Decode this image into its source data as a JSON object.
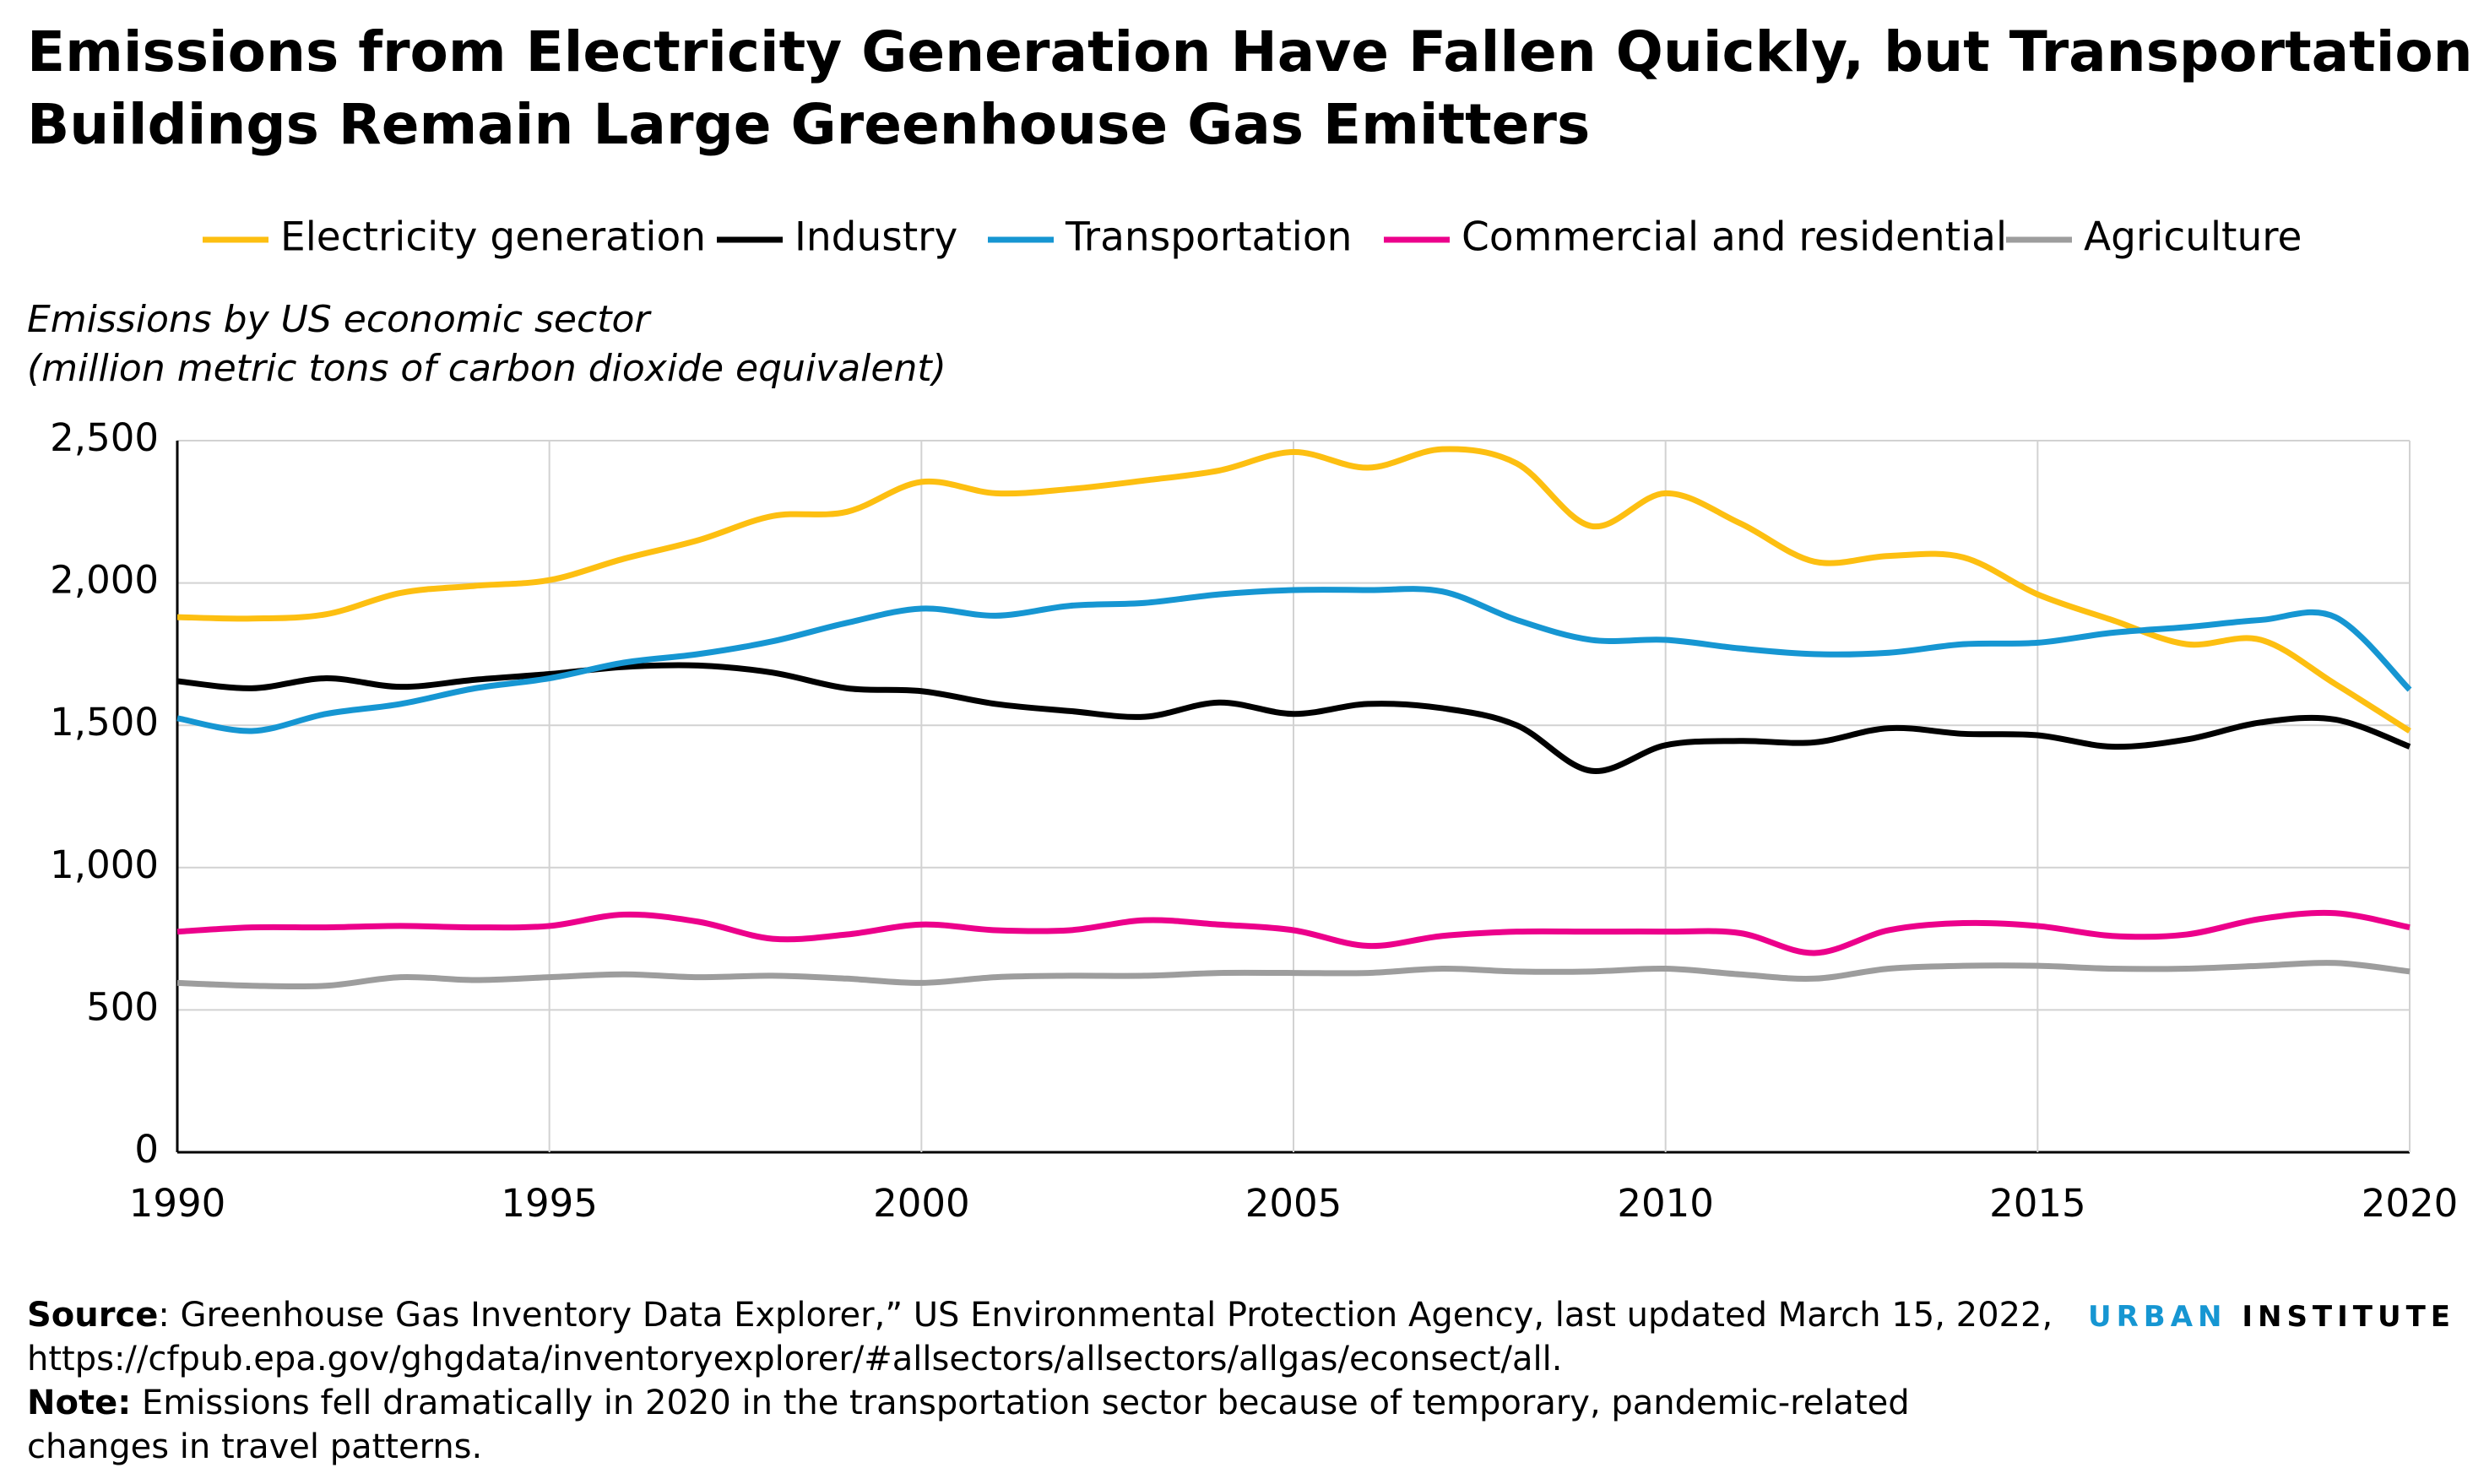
{
  "chart_data": {
    "type": "line",
    "title": [
      "Emissions from Electricity Generation Have Fallen Quickly, but Transportation and",
      "Buildings Remain Large Greenhouse Gas Emitters"
    ],
    "y_label": [
      "Emissions by US economic sector",
      "(million metric tons of carbon dioxide equivalent)"
    ],
    "x": [
      1990,
      1991,
      1992,
      1993,
      1994,
      1995,
      1996,
      1997,
      1998,
      1999,
      2000,
      2001,
      2002,
      2003,
      2004,
      2005,
      2006,
      2007,
      2008,
      2009,
      2010,
      2011,
      2012,
      2013,
      2014,
      2015,
      2016,
      2017,
      2018,
      2019,
      2020
    ],
    "xlim": [
      1990,
      2020
    ],
    "xticks": [
      1990,
      1995,
      2000,
      2005,
      2010,
      2015,
      2020
    ],
    "ylim": [
      0,
      2500
    ],
    "yticks": [
      0,
      500,
      {
        "value": 1000,
        "label": "1,000"
      },
      {
        "value": 1500,
        "label": "1,500"
      },
      {
        "value": 2000,
        "label": "2,000"
      },
      {
        "value": 2500,
        "label": "2,500"
      }
    ],
    "grid": true,
    "legend": "top",
    "series": [
      {
        "name": "Electricity generation",
        "color": "#fdbf11",
        "values": [
          1880,
          1875,
          1890,
          1965,
          1990,
          2010,
          2085,
          2150,
          2235,
          2250,
          2355,
          2315,
          2330,
          2360,
          2395,
          2460,
          2405,
          2470,
          2420,
          2200,
          2315,
          2210,
          2075,
          2095,
          2090,
          1960,
          1870,
          1785,
          1800,
          1645,
          1480
        ]
      },
      {
        "name": "Industry",
        "color": "#000000",
        "values": [
          1655,
          1630,
          1665,
          1635,
          1660,
          1680,
          1705,
          1710,
          1685,
          1630,
          1620,
          1575,
          1550,
          1530,
          1580,
          1540,
          1575,
          1560,
          1500,
          1340,
          1430,
          1445,
          1440,
          1490,
          1470,
          1465,
          1425,
          1450,
          1510,
          1520,
          1425
        ]
      },
      {
        "name": "Transportation",
        "color": "#1696d2",
        "values": [
          1525,
          1480,
          1540,
          1575,
          1630,
          1665,
          1720,
          1750,
          1795,
          1860,
          1910,
          1885,
          1920,
          1930,
          1960,
          1975,
          1975,
          1970,
          1870,
          1800,
          1800,
          1770,
          1750,
          1755,
          1785,
          1790,
          1825,
          1845,
          1870,
          1880,
          1625
        ]
      },
      {
        "name": "Commercial and residential",
        "color": "#ec008b",
        "values": [
          775,
          790,
          790,
          795,
          790,
          795,
          835,
          810,
          750,
          765,
          800,
          780,
          780,
          815,
          800,
          780,
          725,
          760,
          775,
          775,
          775,
          770,
          700,
          780,
          805,
          795,
          760,
          765,
          820,
          840,
          790
        ]
      },
      {
        "name": "Agriculture",
        "color": "#9d9d9d",
        "values": [
          595,
          585,
          585,
          615,
          605,
          615,
          625,
          615,
          620,
          610,
          595,
          615,
          620,
          620,
          630,
          630,
          630,
          645,
          635,
          635,
          645,
          625,
          610,
          645,
          655,
          655,
          645,
          645,
          655,
          665,
          635
        ]
      }
    ],
    "source_label": "Source",
    "source_lines": [
      ": Greenhouse Gas Inventory Data Explorer,” US Environmental Protection Agency, last updated March 15, 2022,",
      "https://cfpub.epa.gov/ghgdata/inventoryexplorer/#allsectors/allsectors/allgas/econsect/all."
    ],
    "note_label": "Note:",
    "note_lines": [
      " Emissions fell dramatically in 2020 in the transportation sector because of temporary, pandemic-related",
      "changes in travel patterns."
    ],
    "logo": [
      "URBAN",
      "INSTITUTE"
    ]
  }
}
